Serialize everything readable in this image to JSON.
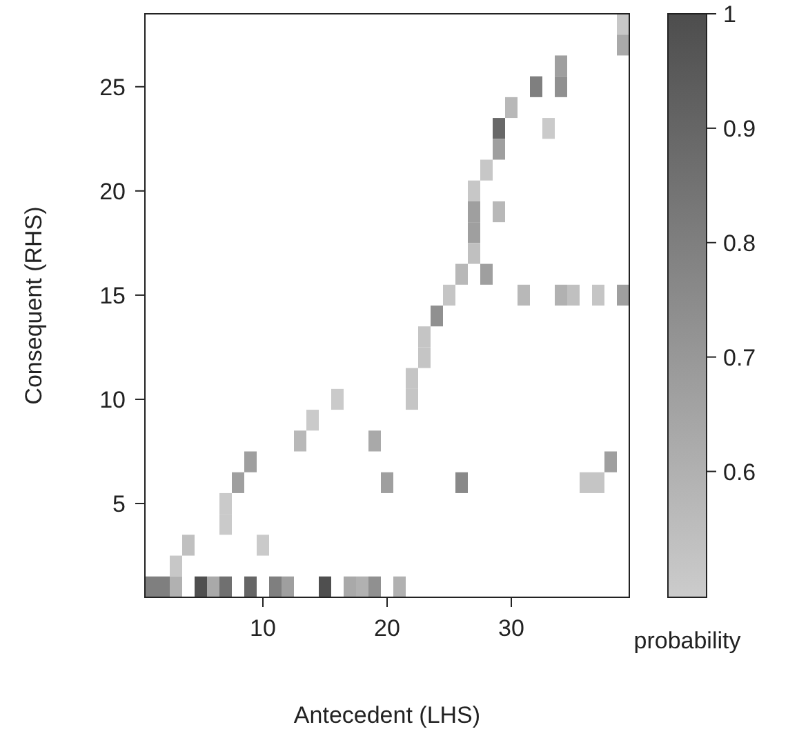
{
  "chart_data": {
    "type": "heatmap",
    "xlabel": "Antecedent (LHS)",
    "ylabel": "Consequent (RHS)",
    "clabel": "probability",
    "categories": [
      null,
      null,
      null,
      null,
      null,
      null,
      null,
      null,
      null,
      "10",
      null,
      null,
      null,
      null,
      null,
      null,
      null,
      null,
      null,
      "20",
      null,
      null,
      null,
      null,
      null,
      null,
      null,
      null,
      null,
      "30",
      null,
      null,
      null,
      null,
      null,
      null,
      null,
      null,
      null
    ],
    "y_categories": [
      null,
      null,
      null,
      "25",
      null,
      null,
      null,
      null,
      "20",
      null,
      null,
      null,
      null,
      "15",
      null,
      null,
      null,
      null,
      "10",
      null,
      null,
      null,
      null,
      "5",
      null,
      null,
      null,
      null
    ],
    "clim": [
      0.49,
      1
    ],
    "cticks": [
      0.6,
      0.7,
      0.8,
      0.9,
      1
    ],
    "cells": [
      [
        null,
        null,
        null,
        null,
        null,
        null,
        null,
        null,
        null,
        null,
        null,
        null,
        null,
        null,
        null,
        null,
        null,
        null,
        null,
        null,
        null,
        null,
        null,
        null,
        null,
        null,
        null,
        null,
        null,
        null,
        null,
        null,
        null,
        null,
        null,
        null,
        null,
        null,
        0.51
      ],
      [
        null,
        null,
        null,
        null,
        null,
        null,
        null,
        null,
        null,
        null,
        null,
        null,
        null,
        null,
        null,
        null,
        null,
        null,
        null,
        null,
        null,
        null,
        null,
        null,
        null,
        null,
        null,
        null,
        null,
        null,
        null,
        null,
        null,
        null,
        null,
        null,
        null,
        null,
        0.63
      ],
      [
        null,
        null,
        null,
        null,
        null,
        null,
        null,
        null,
        null,
        null,
        null,
        null,
        null,
        null,
        null,
        null,
        null,
        null,
        null,
        null,
        null,
        null,
        null,
        null,
        null,
        null,
        null,
        null,
        null,
        null,
        null,
        null,
        null,
        0.67,
        null,
        null,
        null,
        null,
        null
      ],
      [
        null,
        null,
        null,
        null,
        null,
        null,
        null,
        null,
        null,
        null,
        null,
        null,
        null,
        null,
        null,
        null,
        null,
        null,
        null,
        null,
        null,
        null,
        null,
        null,
        null,
        null,
        null,
        null,
        null,
        null,
        null,
        0.8,
        null,
        0.73,
        null,
        null,
        null,
        null,
        null
      ],
      [
        null,
        null,
        null,
        null,
        null,
        null,
        null,
        null,
        null,
        null,
        null,
        null,
        null,
        null,
        null,
        null,
        null,
        null,
        null,
        null,
        null,
        null,
        null,
        null,
        null,
        null,
        null,
        null,
        null,
        0.57,
        null,
        null,
        null,
        null,
        null,
        null,
        null,
        null,
        null
      ],
      [
        null,
        null,
        null,
        null,
        null,
        null,
        null,
        null,
        null,
        null,
        null,
        null,
        null,
        null,
        null,
        null,
        null,
        null,
        null,
        null,
        null,
        null,
        null,
        null,
        null,
        null,
        null,
        null,
        0.89,
        null,
        null,
        null,
        0.5,
        null,
        null,
        null,
        null,
        null,
        null
      ],
      [
        null,
        null,
        null,
        null,
        null,
        null,
        null,
        null,
        null,
        null,
        null,
        null,
        null,
        null,
        null,
        null,
        null,
        null,
        null,
        null,
        null,
        null,
        null,
        null,
        null,
        null,
        null,
        null,
        0.67,
        null,
        null,
        null,
        null,
        null,
        null,
        null,
        null,
        null,
        null
      ],
      [
        null,
        null,
        null,
        null,
        null,
        null,
        null,
        null,
        null,
        null,
        null,
        null,
        null,
        null,
        null,
        null,
        null,
        null,
        null,
        null,
        null,
        null,
        null,
        null,
        null,
        null,
        null,
        0.51,
        null,
        null,
        null,
        null,
        null,
        null,
        null,
        null,
        null,
        null,
        null
      ],
      [
        null,
        null,
        null,
        null,
        null,
        null,
        null,
        null,
        null,
        null,
        null,
        null,
        null,
        null,
        null,
        null,
        null,
        null,
        null,
        null,
        null,
        null,
        null,
        null,
        null,
        null,
        0.51,
        null,
        null,
        null,
        null,
        null,
        null,
        null,
        null,
        null,
        null,
        null,
        null
      ],
      [
        null,
        null,
        null,
        null,
        null,
        null,
        null,
        null,
        null,
        null,
        null,
        null,
        null,
        null,
        null,
        null,
        null,
        null,
        null,
        null,
        null,
        null,
        null,
        null,
        null,
        null,
        0.67,
        null,
        0.57,
        null,
        null,
        null,
        null,
        null,
        null,
        null,
        null,
        null,
        null
      ],
      [
        null,
        null,
        null,
        null,
        null,
        null,
        null,
        null,
        null,
        null,
        null,
        null,
        null,
        null,
        null,
        null,
        null,
        null,
        null,
        null,
        null,
        null,
        null,
        null,
        null,
        null,
        0.67,
        null,
        null,
        null,
        null,
        null,
        null,
        null,
        null,
        null,
        null,
        null,
        null
      ],
      [
        null,
        null,
        null,
        null,
        null,
        null,
        null,
        null,
        null,
        null,
        null,
        null,
        null,
        null,
        null,
        null,
        null,
        null,
        null,
        null,
        null,
        null,
        null,
        null,
        null,
        null,
        0.54,
        null,
        null,
        null,
        null,
        null,
        null,
        null,
        null,
        null,
        null,
        null,
        null
      ],
      [
        null,
        null,
        null,
        null,
        null,
        null,
        null,
        null,
        null,
        null,
        null,
        null,
        null,
        null,
        null,
        null,
        null,
        null,
        null,
        null,
        null,
        null,
        null,
        null,
        null,
        0.57,
        null,
        0.67,
        null,
        null,
        null,
        null,
        null,
        null,
        null,
        null,
        null,
        null,
        null
      ],
      [
        null,
        null,
        null,
        null,
        null,
        null,
        null,
        null,
        null,
        null,
        null,
        null,
        null,
        null,
        null,
        null,
        null,
        null,
        null,
        null,
        null,
        null,
        null,
        null,
        0.52,
        null,
        null,
        null,
        null,
        null,
        0.57,
        null,
        null,
        0.6,
        0.54,
        null,
        0.52,
        null,
        0.67
      ],
      [
        null,
        null,
        null,
        null,
        null,
        null,
        null,
        null,
        null,
        null,
        null,
        null,
        null,
        null,
        null,
        null,
        null,
        null,
        null,
        null,
        null,
        null,
        null,
        0.73,
        null,
        null,
        null,
        null,
        null,
        null,
        null,
        null,
        null,
        null,
        null,
        null,
        null,
        null,
        null
      ],
      [
        null,
        null,
        null,
        null,
        null,
        null,
        null,
        null,
        null,
        null,
        null,
        null,
        null,
        null,
        null,
        null,
        null,
        null,
        null,
        null,
        null,
        null,
        0.52,
        null,
        null,
        null,
        null,
        null,
        null,
        null,
        null,
        null,
        null,
        null,
        null,
        null,
        null,
        null,
        null
      ],
      [
        null,
        null,
        null,
        null,
        null,
        null,
        null,
        null,
        null,
        null,
        null,
        null,
        null,
        null,
        null,
        null,
        null,
        null,
        null,
        null,
        null,
        null,
        0.52,
        null,
        null,
        null,
        null,
        null,
        null,
        null,
        null,
        null,
        null,
        null,
        null,
        null,
        null,
        null,
        null
      ],
      [
        null,
        null,
        null,
        null,
        null,
        null,
        null,
        null,
        null,
        null,
        null,
        null,
        null,
        null,
        null,
        null,
        null,
        null,
        null,
        null,
        null,
        0.52,
        null,
        null,
        null,
        null,
        null,
        null,
        null,
        null,
        null,
        null,
        null,
        null,
        null,
        null,
        null,
        null,
        null
      ],
      [
        null,
        null,
        null,
        null,
        null,
        null,
        null,
        null,
        null,
        null,
        null,
        null,
        null,
        null,
        null,
        0.5,
        null,
        null,
        null,
        null,
        null,
        0.52,
        null,
        null,
        null,
        null,
        null,
        null,
        null,
        null,
        null,
        null,
        null,
        null,
        null,
        null,
        null,
        null,
        null
      ],
      [
        null,
        null,
        null,
        null,
        null,
        null,
        null,
        null,
        null,
        null,
        null,
        null,
        null,
        0.5,
        null,
        null,
        null,
        null,
        null,
        null,
        null,
        null,
        null,
        null,
        null,
        null,
        null,
        null,
        null,
        null,
        null,
        null,
        null,
        null,
        null,
        null,
        null,
        null,
        null
      ],
      [
        null,
        null,
        null,
        null,
        null,
        null,
        null,
        null,
        null,
        null,
        null,
        null,
        0.57,
        null,
        null,
        null,
        null,
        null,
        0.63,
        null,
        null,
        null,
        null,
        null,
        null,
        null,
        null,
        null,
        null,
        null,
        null,
        null,
        null,
        null,
        null,
        null,
        null,
        null,
        null
      ],
      [
        null,
        null,
        null,
        null,
        null,
        null,
        null,
        null,
        0.67,
        null,
        null,
        null,
        null,
        null,
        null,
        null,
        null,
        null,
        null,
        null,
        null,
        null,
        null,
        null,
        null,
        null,
        null,
        null,
        null,
        null,
        null,
        null,
        null,
        null,
        null,
        null,
        null,
        0.67,
        null
      ],
      [
        null,
        null,
        null,
        null,
        null,
        null,
        null,
        0.67,
        null,
        null,
        null,
        null,
        null,
        null,
        null,
        null,
        null,
        null,
        null,
        0.67,
        null,
        null,
        null,
        null,
        null,
        0.76,
        null,
        null,
        null,
        null,
        null,
        null,
        null,
        null,
        null,
        0.52,
        0.52,
        null,
        null
      ],
      [
        null,
        null,
        null,
        null,
        null,
        null,
        0.5,
        null,
        null,
        null,
        null,
        null,
        null,
        null,
        null,
        null,
        null,
        null,
        null,
        null,
        null,
        null,
        null,
        null,
        null,
        null,
        null,
        null,
        null,
        null,
        null,
        null,
        null,
        null,
        null,
        null,
        null,
        null,
        null
      ],
      [
        null,
        null,
        null,
        null,
        null,
        null,
        0.5,
        null,
        null,
        null,
        null,
        null,
        null,
        null,
        null,
        null,
        null,
        null,
        null,
        null,
        null,
        null,
        null,
        null,
        null,
        null,
        null,
        null,
        null,
        null,
        null,
        null,
        null,
        null,
        null,
        null,
        null,
        null,
        null
      ],
      [
        null,
        null,
        null,
        0.54,
        null,
        null,
        null,
        null,
        null,
        0.5,
        null,
        null,
        null,
        null,
        null,
        null,
        null,
        null,
        null,
        null,
        null,
        null,
        null,
        null,
        null,
        null,
        null,
        null,
        null,
        null,
        null,
        null,
        null,
        null,
        null,
        null,
        null,
        null,
        null
      ],
      [
        null,
        null,
        0.51,
        null,
        null,
        null,
        null,
        null,
        null,
        null,
        null,
        null,
        null,
        null,
        null,
        null,
        null,
        null,
        null,
        null,
        null,
        null,
        null,
        null,
        null,
        null,
        null,
        null,
        null,
        null,
        null,
        null,
        null,
        null,
        null,
        null,
        null,
        null,
        null
      ],
      [
        0.8,
        0.8,
        0.6,
        null,
        0.99,
        0.63,
        0.86,
        null,
        0.9,
        null,
        0.8,
        0.67,
        null,
        null,
        0.99,
        null,
        0.63,
        0.6,
        0.73,
        null,
        0.6,
        null,
        null,
        null,
        null,
        null,
        null,
        null,
        null,
        null,
        null,
        null,
        null,
        null,
        null,
        null,
        null,
        null,
        null
      ]
    ]
  }
}
